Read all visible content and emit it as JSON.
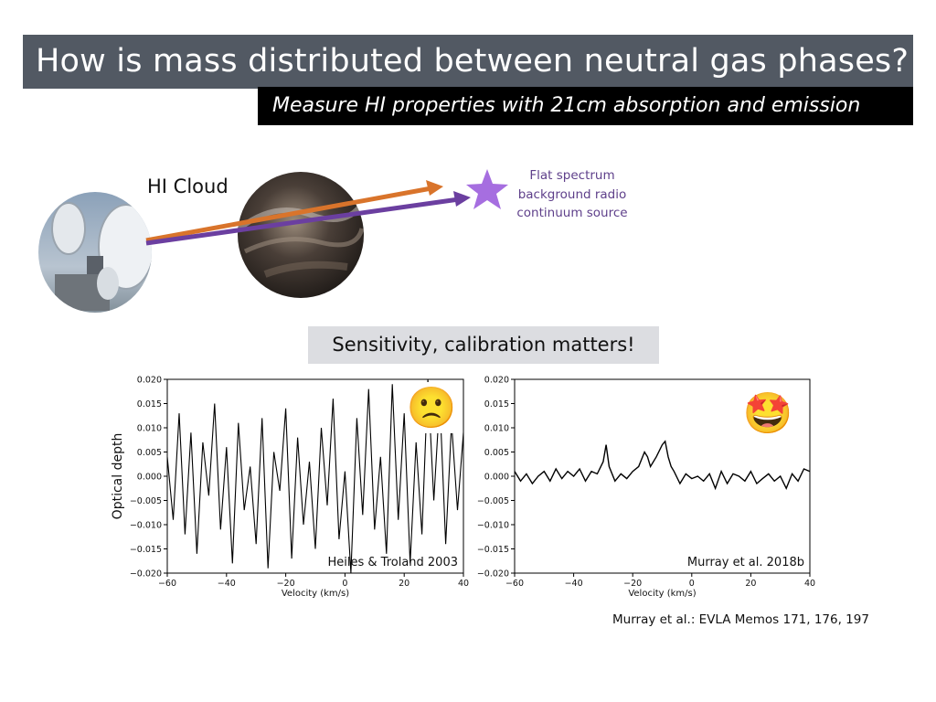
{
  "slide": {
    "title": "How is mass distributed between neutral gas phases?",
    "subtitle": "Measure HI properties with 21cm absorption and emission",
    "cloud_label": "HI Cloud",
    "source_label_lines": [
      "Flat spectrum",
      "background radio",
      "continuum source"
    ],
    "sensitivity_note": "Sensitivity, calibration matters!",
    "reference": "Murray et al.: EVLA Memos 171, 176, 197",
    "colors": {
      "title_bg": "#525963",
      "subtitle_bg": "#000000",
      "arrow_orange": "#d9742b",
      "arrow_purple": "#6b3fa0",
      "star": "#a66ee0"
    },
    "icons": [
      "radio-dish-photo",
      "hi-cloud-photo",
      "star-icon",
      "sad-face-emoji",
      "star-struck-emoji"
    ]
  },
  "chart_data": [
    {
      "type": "line",
      "panel_label": "Heiles & Troland 2003",
      "xlabel": "Velocity (km/s)",
      "ylabel": "Optical depth",
      "xlim": [
        -60,
        40
      ],
      "ylim": [
        -0.02,
        0.02
      ],
      "xticks": [
        "−60",
        "−40",
        "−20",
        "0",
        "20",
        "40"
      ],
      "yticks": [
        "−0.020",
        "−0.015",
        "−0.010",
        "−0.005",
        "0.000",
        "0.005",
        "0.010",
        "0.015",
        "0.020"
      ],
      "emoji": "🙁",
      "x": [
        -60,
        -58,
        -56,
        -54,
        -52,
        -50,
        -48,
        -46,
        -44,
        -42,
        -40,
        -38,
        -36,
        -34,
        -32,
        -30,
        -28,
        -26,
        -24,
        -22,
        -20,
        -18,
        -16,
        -14,
        -12,
        -10,
        -8,
        -6,
        -4,
        -2,
        0,
        2,
        4,
        6,
        8,
        10,
        12,
        14,
        16,
        18,
        20,
        22,
        24,
        26,
        28,
        30,
        32,
        34,
        36,
        38,
        40
      ],
      "y": [
        0.004,
        -0.009,
        0.013,
        -0.012,
        0.009,
        -0.016,
        0.007,
        -0.004,
        0.015,
        -0.011,
        0.006,
        -0.018,
        0.011,
        -0.007,
        0.002,
        -0.014,
        0.012,
        -0.019,
        0.005,
        -0.003,
        0.014,
        -0.017,
        0.008,
        -0.01,
        0.003,
        -0.015,
        0.01,
        -0.006,
        0.016,
        -0.013,
        0.001,
        -0.02,
        0.012,
        -0.008,
        0.018,
        -0.011,
        0.004,
        -0.016,
        0.019,
        -0.009,
        0.013,
        -0.018,
        0.007,
        -0.012,
        0.02,
        -0.005,
        0.016,
        -0.014,
        0.011,
        -0.007,
        0.009
      ]
    },
    {
      "type": "line",
      "panel_label": "Murray et al. 2018b",
      "xlabel": "Velocity (km/s)",
      "xlim": [
        -60,
        40
      ],
      "ylim": [
        -0.02,
        0.02
      ],
      "xticks": [
        "−60",
        "−40",
        "−20",
        "0",
        "20",
        "40"
      ],
      "yticks": [
        "−0.020",
        "−0.015",
        "−0.010",
        "−0.005",
        "0.000",
        "0.005",
        "0.010",
        "0.015",
        "0.020"
      ],
      "emoji": "🤩",
      "x": [
        -60,
        -58,
        -56,
        -54,
        -52,
        -50,
        -48,
        -46,
        -44,
        -42,
        -40,
        -38,
        -36,
        -34,
        -32,
        -30,
        -29,
        -28,
        -26,
        -24,
        -22,
        -20,
        -18,
        -16,
        -15,
        -14,
        -12,
        -10,
        -9,
        -8,
        -7,
        -6,
        -4,
        -2,
        0,
        2,
        4,
        6,
        8,
        10,
        12,
        14,
        16,
        18,
        20,
        22,
        24,
        26,
        28,
        30,
        32,
        34,
        36,
        38,
        40
      ],
      "y": [
        0.001,
        -0.001,
        0.0005,
        -0.0015,
        0.0,
        0.001,
        -0.001,
        0.0015,
        -0.0005,
        0.001,
        0.0,
        0.0015,
        -0.001,
        0.001,
        0.0005,
        0.003,
        0.0065,
        0.002,
        -0.001,
        0.0005,
        -0.0005,
        0.001,
        0.002,
        0.005,
        0.004,
        0.002,
        0.004,
        0.0065,
        0.0072,
        0.004,
        0.002,
        0.001,
        -0.0015,
        0.0005,
        -0.0005,
        0.0,
        -0.001,
        0.0005,
        -0.0025,
        0.001,
        -0.0015,
        0.0005,
        0.0,
        -0.001,
        0.001,
        -0.0015,
        -0.0005,
        0.0005,
        -0.001,
        0.0,
        -0.0025,
        0.0005,
        -0.001,
        0.0015,
        0.001
      ]
    }
  ]
}
